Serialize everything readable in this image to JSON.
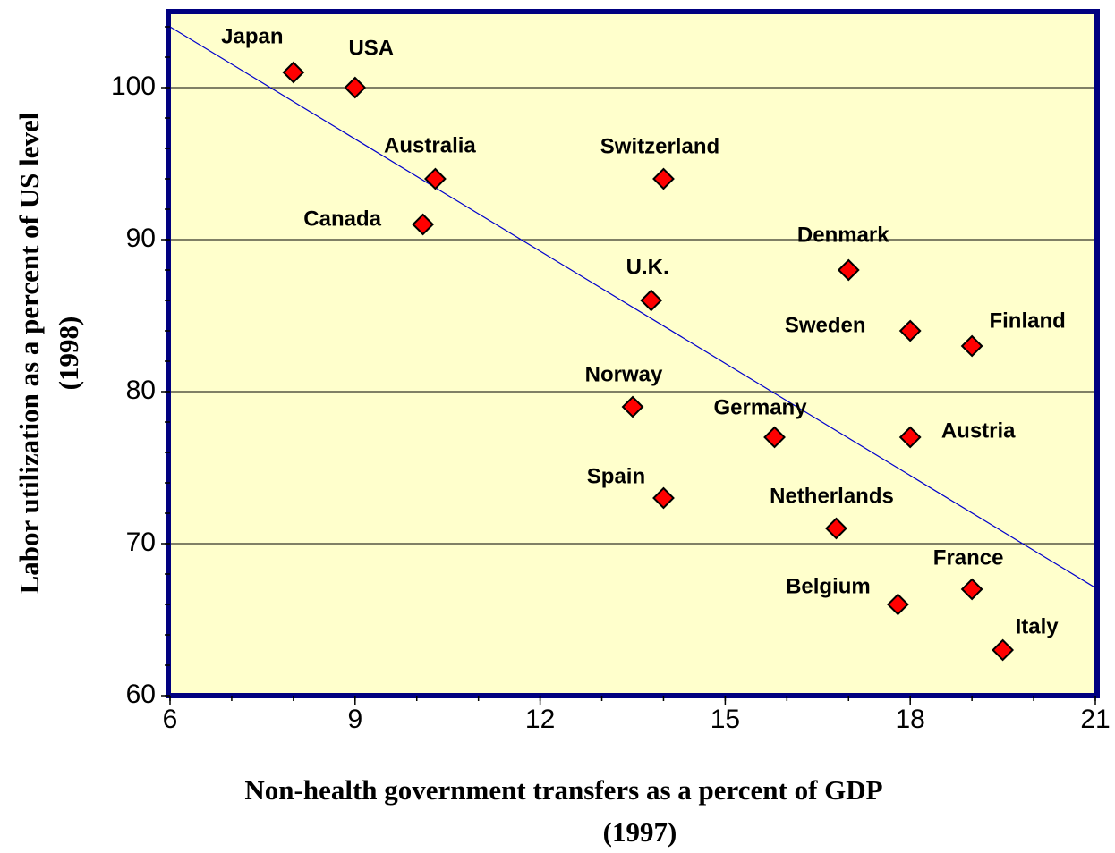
{
  "chart_data": {
    "type": "scatter",
    "x_label": [
      "Non-health government transfers as a percent of GDP",
      "(1997)"
    ],
    "y_label": [
      "Labor utilization as a percent of US level",
      "(1998)"
    ],
    "series": [
      {
        "color": "#ff0000",
        "labels": [
          "Japan",
          "USA",
          "Australia",
          "Canada",
          "Switzerland",
          "U.K.",
          "Denmark",
          "Sweden",
          "Finland",
          "Norway",
          "Germany",
          "Austria",
          "Spain",
          "Netherlands",
          "France",
          "Belgium",
          "Italy"
        ],
        "x": [
          8,
          9,
          10.3,
          10.1,
          14,
          13.8,
          17,
          18,
          19,
          13.5,
          15.8,
          18,
          14,
          16.8,
          19,
          17.8,
          19.5
        ],
        "values": [
          101,
          100,
          94,
          91,
          94,
          86,
          88,
          84,
          83,
          79,
          77,
          77,
          73,
          71,
          67,
          66,
          63
        ]
      }
    ],
    "trendline": {
      "color": "#0000cc",
      "x": [
        6,
        21
      ],
      "y": [
        104,
        67.1
      ]
    },
    "xlim": [
      6,
      21
    ],
    "xticks": [
      6,
      9,
      12,
      15,
      18,
      21
    ],
    "ylim": [
      60,
      105
    ],
    "yticks": [
      60,
      70,
      80,
      90,
      100
    ],
    "grid": true,
    "background": "#ffffcc",
    "frame_color": "#000080"
  }
}
